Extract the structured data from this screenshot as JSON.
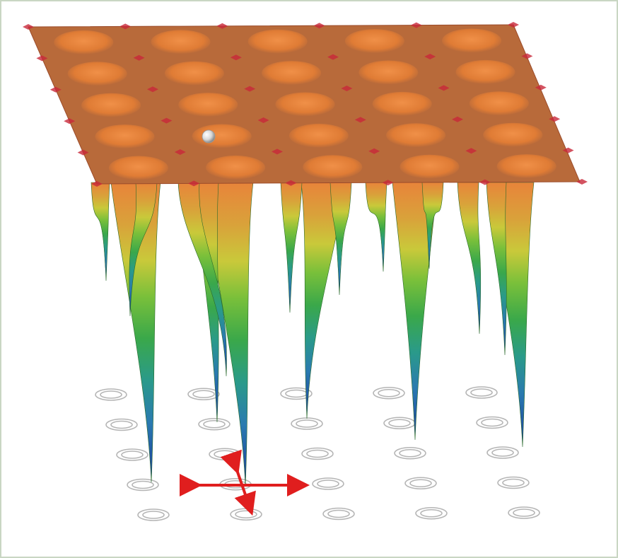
{
  "figure": {
    "colors": {
      "plane": "#b86a3a",
      "plane_edge": "#9b4b2a",
      "well_rim": "#e8843a",
      "ring_stroke": "#b5b5b5",
      "arrow": "#e01e1e",
      "sphere": "#e8e8e8",
      "background": "#ffffff",
      "frame_border": "#c9d6c3"
    },
    "colormap": [
      "#e8843a",
      "#d9a23a",
      "#c9c93a",
      "#7ac03a",
      "#3aa84a",
      "#2a9a8a",
      "#2a7ab0",
      "#1a3a9a"
    ],
    "grid": {
      "rows": 5,
      "cols": 5
    },
    "icons": {
      "marker": "sphere-icon",
      "directions": "bidirectional-arrows-icon"
    }
  }
}
